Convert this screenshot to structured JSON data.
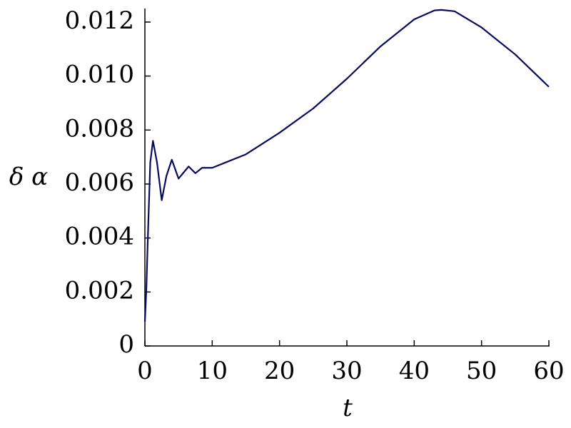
{
  "chart_data": {
    "type": "line",
    "x_label": "t",
    "y_label": "δ α",
    "x": [
      0,
      0.2,
      0.5,
      0.8,
      1.2,
      1.8,
      2.5,
      3.2,
      4,
      5,
      6.5,
      7.5,
      8.5,
      10,
      12,
      15,
      20,
      25,
      30,
      35,
      40,
      43,
      44,
      46,
      50,
      55,
      60
    ],
    "series": [
      {
        "name": "δ α",
        "color": "#0b0b5e",
        "values": [
          0.0009,
          0.002,
          0.0045,
          0.0068,
          0.0076,
          0.0068,
          0.0054,
          0.0063,
          0.0069,
          0.0062,
          0.00665,
          0.0064,
          0.0066,
          0.0066,
          0.0068,
          0.0071,
          0.0079,
          0.0088,
          0.0099,
          0.0111,
          0.0121,
          0.01243,
          0.01245,
          0.0124,
          0.0118,
          0.0108,
          0.0096
        ]
      }
    ],
    "xlim": [
      0,
      60
    ],
    "xticks": [
      0,
      10,
      20,
      30,
      40,
      50,
      60
    ],
    "ylim": [
      0,
      0.0125
    ],
    "yticks": [
      0,
      0.002,
      0.004,
      0.006,
      0.008,
      {
        "value": 0.01,
        "label": "0.010"
      },
      0.012
    ],
    "grid": false
  }
}
